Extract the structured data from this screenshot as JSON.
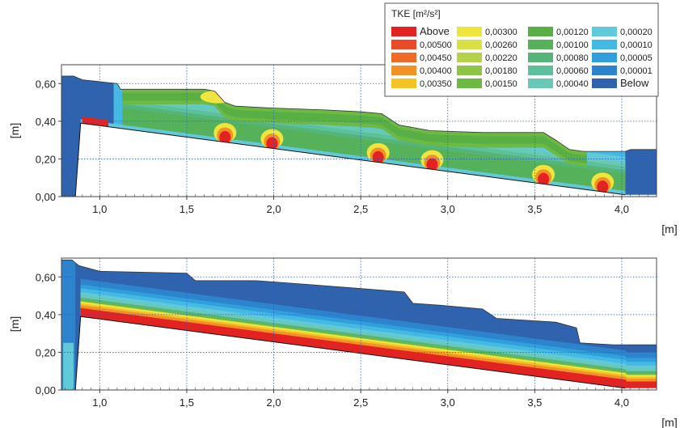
{
  "chart_data": [
    {
      "type": "heatmap",
      "title": "",
      "xlabel": "[m]",
      "ylabel": "[m]",
      "xlim": [
        0.78,
        4.2
      ],
      "ylim": [
        0,
        0.7
      ],
      "xticks": [
        "1,0",
        "1,5",
        "2,0",
        "2,5",
        "3,0",
        "3,5",
        "4,0"
      ],
      "xtick_values": [
        1.0,
        1.5,
        2.0,
        2.5,
        3.0,
        3.5,
        4.0
      ],
      "yticks": [
        "0,00",
        "0,20",
        "0,40",
        "0,60"
      ],
      "ytick_values": [
        0.0,
        0.2,
        0.4,
        0.6
      ],
      "grid": true,
      "bed_profile": [
        [
          0.86,
          0.0
        ],
        [
          0.89,
          0.39
        ],
        [
          4.02,
          0.01
        ]
      ],
      "free_surface": [
        [
          0.78,
          0.64
        ],
        [
          0.85,
          0.64
        ],
        [
          0.9,
          0.62
        ],
        [
          1.1,
          0.6
        ],
        [
          1.12,
          0.57
        ],
        [
          1.6,
          0.57
        ],
        [
          1.66,
          0.56
        ],
        [
          1.72,
          0.5
        ],
        [
          1.78,
          0.48
        ],
        [
          2.0,
          0.47
        ],
        [
          2.3,
          0.46
        ],
        [
          2.5,
          0.45
        ],
        [
          2.62,
          0.44
        ],
        [
          2.72,
          0.38
        ],
        [
          2.9,
          0.35
        ],
        [
          3.2,
          0.34
        ],
        [
          3.55,
          0.34
        ],
        [
          3.62,
          0.3
        ],
        [
          3.7,
          0.25
        ],
        [
          3.78,
          0.24
        ],
        [
          4.02,
          0.24
        ],
        [
          4.05,
          0.25
        ],
        [
          4.2,
          0.25
        ]
      ],
      "hotspots_x": [
        0.95,
        1.72,
        1.99,
        2.6,
        2.91,
        3.55,
        3.89
      ],
      "band_profile": "discrete"
    },
    {
      "type": "heatmap",
      "title": "",
      "xlabel": "[m]",
      "ylabel": "[m]",
      "xlim": [
        0.78,
        4.2
      ],
      "ylim": [
        0,
        0.7
      ],
      "xticks": [
        "1,0",
        "1,5",
        "2,0",
        "2,5",
        "3,0",
        "3,5",
        "4,0"
      ],
      "xtick_values": [
        1.0,
        1.5,
        2.0,
        2.5,
        3.0,
        3.5,
        4.0
      ],
      "yticks": [
        "0,00",
        "0,20",
        "0,40",
        "0,60"
      ],
      "ytick_values": [
        0.0,
        0.2,
        0.4,
        0.6
      ],
      "grid": true,
      "bed_profile": [
        [
          0.86,
          0.0
        ],
        [
          0.89,
          0.39
        ],
        [
          4.02,
          0.01
        ]
      ],
      "free_surface": [
        [
          0.78,
          0.69
        ],
        [
          0.84,
          0.69
        ],
        [
          0.88,
          0.66
        ],
        [
          1.0,
          0.63
        ],
        [
          1.5,
          0.62
        ],
        [
          1.55,
          0.58
        ],
        [
          1.9,
          0.58
        ],
        [
          2.2,
          0.56
        ],
        [
          2.48,
          0.54
        ],
        [
          2.75,
          0.52
        ],
        [
          2.8,
          0.46
        ],
        [
          2.95,
          0.45
        ],
        [
          3.2,
          0.43
        ],
        [
          3.28,
          0.38
        ],
        [
          3.62,
          0.36
        ],
        [
          3.74,
          0.33
        ],
        [
          3.76,
          0.25
        ],
        [
          3.95,
          0.24
        ],
        [
          4.2,
          0.24
        ]
      ],
      "band_profile": "continuous"
    }
  ],
  "legend": {
    "title": "TKE [m²/s²]",
    "columns": [
      [
        {
          "label": "Above",
          "color": "#e32222"
        },
        {
          "label": "0,00500",
          "color": "#e94a28"
        },
        {
          "label": "0,00450",
          "color": "#ef6a26"
        },
        {
          "label": "0,00400",
          "color": "#f29226"
        },
        {
          "label": "0,00350",
          "color": "#f4c326"
        }
      ],
      [
        {
          "label": "0,00300",
          "color": "#eee53e"
        },
        {
          "label": "0,00260",
          "color": "#d7e045"
        },
        {
          "label": "0,00220",
          "color": "#b5d34a"
        },
        {
          "label": "0,00180",
          "color": "#8fc546"
        },
        {
          "label": "0,00150",
          "color": "#6cb944"
        }
      ],
      [
        {
          "label": "0,00120",
          "color": "#58b044"
        },
        {
          "label": "0,00100",
          "color": "#56b25a"
        },
        {
          "label": "0,00080",
          "color": "#55b47a"
        },
        {
          "label": "0,00060",
          "color": "#5cc19a"
        },
        {
          "label": "0,00040",
          "color": "#68c9b6"
        }
      ],
      [
        {
          "label": "0,00020",
          "color": "#61c9d8"
        },
        {
          "label": "0,00010",
          "color": "#43b9e3"
        },
        {
          "label": "0,00005",
          "color": "#319fdc"
        },
        {
          "label": "0,00001",
          "color": "#2d84cc"
        },
        {
          "label": "Below",
          "color": "#2f63ad"
        }
      ]
    ]
  }
}
